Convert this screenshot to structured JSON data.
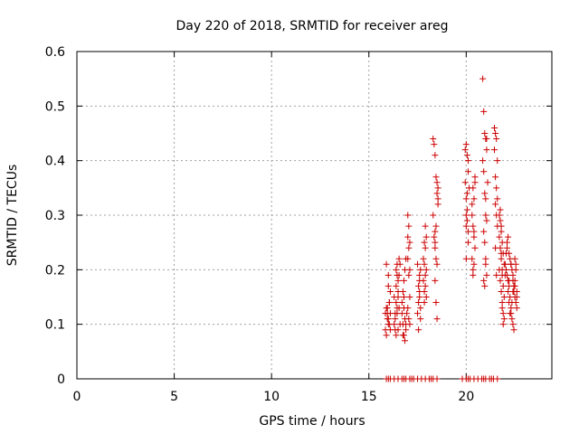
{
  "chart_data": {
    "type": "scatter",
    "title": "Day 220 of 2018, SRMTID for receiver areg",
    "xlabel": "GPS time / hours",
    "ylabel": "SRMTID / TECUs",
    "xlim": [
      0,
      24.4
    ],
    "ylim": [
      0,
      0.6
    ],
    "xticks": [
      0,
      5,
      10,
      15,
      20
    ],
    "yticks": [
      0,
      0.1,
      0.2,
      0.3,
      0.4,
      0.5,
      0.6
    ],
    "xtick_labels": [
      "0",
      "5",
      "10",
      "15",
      "20"
    ],
    "ytick_labels": [
      "0",
      "0.1",
      "0.2",
      "0.3",
      "0.4",
      "0.5",
      "0.6"
    ],
    "grid": true,
    "marker": "+",
    "color": "#cc0000",
    "series": [
      {
        "name": "SRMTID",
        "x": [
          15.85,
          15.9,
          15.95,
          16.0,
          16.05,
          16.1,
          15.85,
          15.9,
          15.95,
          16.0,
          16.05,
          16.1,
          15.9,
          16.0,
          16.05,
          15.95,
          16.1,
          16.0,
          16.3,
          16.35,
          16.4,
          16.45,
          16.5,
          16.55,
          16.3,
          16.35,
          16.4,
          16.45,
          16.5,
          16.35,
          16.4,
          16.45,
          16.5,
          16.55,
          16.4,
          16.5,
          16.45,
          16.55,
          16.6,
          16.6,
          16.7,
          16.75,
          16.8,
          16.85,
          16.9,
          16.7,
          16.75,
          16.8,
          16.85,
          16.9,
          16.8,
          16.85,
          16.9,
          16.95,
          16.75,
          16.8,
          17.0,
          17.05,
          17.1,
          17.0,
          17.05,
          17.1,
          17.0,
          17.05,
          17.1,
          17.0,
          17.05,
          17.1,
          17.5,
          17.55,
          17.6,
          17.65,
          17.5,
          17.55,
          17.6,
          17.65,
          17.55,
          17.6,
          17.65,
          17.6,
          17.8,
          17.85,
          17.9,
          17.95,
          17.8,
          17.85,
          17.9,
          17.95,
          17.85,
          17.9,
          17.95,
          17.9,
          17.85,
          18.3,
          18.35,
          18.4,
          18.45,
          18.5,
          18.55,
          18.3,
          18.35,
          18.4,
          18.45,
          18.5,
          18.55,
          18.4,
          18.45,
          18.5,
          18.45,
          18.5,
          18.4,
          18.55,
          18.4,
          19.95,
          20.0,
          20.05,
          20.1,
          19.95,
          20.0,
          20.05,
          20.1,
          20.0,
          20.05,
          20.1,
          20.0,
          20.05,
          20.15,
          20.1,
          20.0,
          20.3,
          20.35,
          20.4,
          20.45,
          20.3,
          20.35,
          20.4,
          20.45,
          20.35,
          20.4,
          20.45,
          20.3,
          20.4,
          20.35,
          20.85,
          20.9,
          20.95,
          21.0,
          21.05,
          20.85,
          20.9,
          20.95,
          21.0,
          21.05,
          20.9,
          20.95,
          21.0,
          21.05,
          21.0,
          20.95,
          20.9,
          21.1,
          21.0,
          21.05,
          21.45,
          21.5,
          21.55,
          21.6,
          21.45,
          21.5,
          21.55,
          21.6,
          21.5,
          21.55,
          21.6,
          21.5,
          21.55,
          21.7,
          21.75,
          21.8,
          21.85,
          21.9,
          21.95,
          21.7,
          21.75,
          21.8,
          21.85,
          21.9,
          21.95,
          21.7,
          21.75,
          21.8,
          21.85,
          21.9,
          21.95,
          21.75,
          21.8,
          21.85,
          21.9,
          21.8,
          21.85,
          22.0,
          22.05,
          22.1,
          22.15,
          22.2,
          22.25,
          22.3,
          22.35,
          22.4,
          22.45,
          22.5,
          22.55,
          22.6,
          22.0,
          22.05,
          22.1,
          22.15,
          22.2,
          22.25,
          22.3,
          22.35,
          22.4,
          22.45,
          22.5,
          22.55,
          22.6,
          22.1,
          22.2,
          22.3,
          22.4,
          22.5,
          22.6,
          22.15,
          22.25,
          22.35,
          22.45,
          22.55,
          22.2,
          22.3,
          22.4,
          22.5,
          15.9,
          16.1,
          16.3,
          16.5,
          16.7,
          16.9,
          17.1,
          17.3,
          17.5,
          17.7,
          17.9,
          18.1,
          18.3,
          18.5,
          19.8,
          20.0,
          20.2,
          20.4,
          20.6,
          20.8,
          21.0,
          21.2,
          21.4,
          21.6,
          16.0,
          16.8,
          17.2,
          18.2,
          20.1,
          20.9,
          21.3
        ],
        "y": [
          0.12,
          0.13,
          0.11,
          0.1,
          0.14,
          0.12,
          0.09,
          0.08,
          0.13,
          0.11,
          0.1,
          0.16,
          0.21,
          0.19,
          0.14,
          0.12,
          0.09,
          0.17,
          0.15,
          0.12,
          0.2,
          0.21,
          0.18,
          0.13,
          0.1,
          0.09,
          0.14,
          0.19,
          0.16,
          0.11,
          0.08,
          0.12,
          0.15,
          0.22,
          0.17,
          0.09,
          0.13,
          0.19,
          0.21,
          0.1,
          0.12,
          0.1,
          0.08,
          0.07,
          0.09,
          0.14,
          0.16,
          0.13,
          0.11,
          0.1,
          0.18,
          0.2,
          0.22,
          0.12,
          0.08,
          0.15,
          0.3,
          0.28,
          0.25,
          0.22,
          0.19,
          0.15,
          0.13,
          0.11,
          0.2,
          0.26,
          0.24,
          0.1,
          0.12,
          0.14,
          0.18,
          0.2,
          0.21,
          0.17,
          0.15,
          0.11,
          0.09,
          0.16,
          0.13,
          0.19,
          0.22,
          0.25,
          0.28,
          0.2,
          0.18,
          0.16,
          0.24,
          0.26,
          0.14,
          0.17,
          0.15,
          0.19,
          0.21,
          0.44,
          0.43,
          0.41,
          0.37,
          0.34,
          0.32,
          0.3,
          0.26,
          0.24,
          0.22,
          0.36,
          0.35,
          0.25,
          0.14,
          0.11,
          0.28,
          0.21,
          0.18,
          0.33,
          0.27,
          0.42,
          0.43,
          0.41,
          0.38,
          0.36,
          0.33,
          0.31,
          0.27,
          0.3,
          0.29,
          0.25,
          0.22,
          0.34,
          0.35,
          0.4,
          0.28,
          0.3,
          0.28,
          0.26,
          0.24,
          0.22,
          0.2,
          0.33,
          0.37,
          0.19,
          0.21,
          0.36,
          0.32,
          0.27,
          0.35,
          0.55,
          0.49,
          0.45,
          0.44,
          0.42,
          0.4,
          0.38,
          0.34,
          0.33,
          0.29,
          0.27,
          0.25,
          0.22,
          0.19,
          0.21,
          0.17,
          0.18,
          0.36,
          0.3,
          0.44,
          0.46,
          0.45,
          0.44,
          0.4,
          0.42,
          0.37,
          0.35,
          0.33,
          0.32,
          0.3,
          0.28,
          0.24,
          0.19,
          0.3,
          0.29,
          0.27,
          0.25,
          0.23,
          0.21,
          0.2,
          0.18,
          0.16,
          0.14,
          0.12,
          0.11,
          0.26,
          0.24,
          0.22,
          0.19,
          0.17,
          0.15,
          0.31,
          0.28,
          0.13,
          0.1,
          0.23,
          0.2,
          0.21,
          0.2,
          0.19,
          0.18,
          0.17,
          0.22,
          0.21,
          0.2,
          0.18,
          0.16,
          0.15,
          0.14,
          0.13,
          0.19,
          0.23,
          0.25,
          0.16,
          0.14,
          0.15,
          0.12,
          0.11,
          0.1,
          0.17,
          0.18,
          0.2,
          0.16,
          0.24,
          0.23,
          0.21,
          0.19,
          0.17,
          0.15,
          0.26,
          0.12,
          0.14,
          0.09,
          0.21,
          0.18,
          0.13,
          0.16,
          0.22,
          0,
          0,
          0,
          0,
          0,
          0,
          0,
          0,
          0,
          0,
          0,
          0,
          0,
          0,
          0,
          0,
          0,
          0,
          0,
          0,
          0,
          0,
          0,
          0,
          0,
          0,
          0,
          0,
          0,
          0,
          0
        ]
      }
    ]
  }
}
